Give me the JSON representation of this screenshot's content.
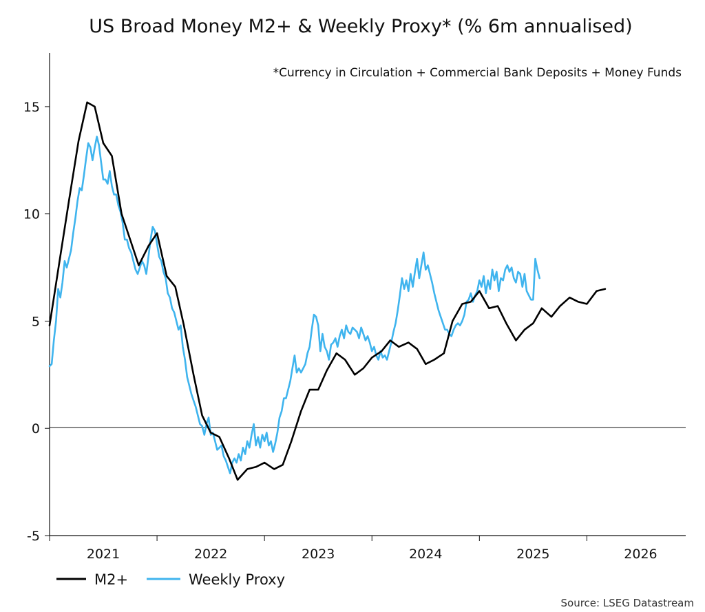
{
  "chart_data": {
    "type": "line",
    "title": "US Broad Money M2+ & Weekly Proxy* (% 6m annualised)",
    "note": "*Currency in Circulation + Commercial Bank Deposits + Money Funds",
    "source": "Source: LSEG Datastream",
    "xlabel": "",
    "ylabel": "",
    "ylim": [
      -5,
      17.5
    ],
    "xlim": [
      2020.5,
      2026.42
    ],
    "yticks": [
      -5,
      0,
      5,
      10,
      15
    ],
    "ytick_labels": [
      "-5",
      "0",
      "5",
      "10",
      "15"
    ],
    "xtick_labels": [
      {
        "label": "2021",
        "x": 2021.0
      },
      {
        "label": "2022",
        "x": 2022.0
      },
      {
        "label": "2023",
        "x": 2023.0
      },
      {
        "label": "2024",
        "x": 2024.0
      },
      {
        "label": "2025",
        "x": 2025.0
      },
      {
        "label": "2026",
        "x": 2026.0
      }
    ],
    "zero_line": true,
    "grid": false,
    "legend_position": "bottom-left",
    "series": [
      {
        "name": "M2+",
        "color": "#000000",
        "points": [
          [
            2020.5,
            4.8
          ],
          [
            2020.59,
            7.7
          ],
          [
            2020.68,
            10.6
          ],
          [
            2020.77,
            13.4
          ],
          [
            2020.85,
            15.2
          ],
          [
            2020.92,
            15.0
          ],
          [
            2021.0,
            13.3
          ],
          [
            2021.08,
            12.7
          ],
          [
            2021.17,
            10.0
          ],
          [
            2021.25,
            8.8
          ],
          [
            2021.33,
            7.6
          ],
          [
            2021.42,
            8.5
          ],
          [
            2021.5,
            9.1
          ],
          [
            2021.59,
            7.1
          ],
          [
            2021.67,
            6.6
          ],
          [
            2021.75,
            4.8
          ],
          [
            2021.84,
            2.5
          ],
          [
            2021.92,
            0.6
          ],
          [
            2022.0,
            -0.2
          ],
          [
            2022.08,
            -0.4
          ],
          [
            2022.17,
            -1.4
          ],
          [
            2022.25,
            -2.4
          ],
          [
            2022.34,
            -1.9
          ],
          [
            2022.42,
            -1.8
          ],
          [
            2022.5,
            -1.6
          ],
          [
            2022.59,
            -1.9
          ],
          [
            2022.67,
            -1.7
          ],
          [
            2022.75,
            -0.6
          ],
          [
            2022.84,
            0.8
          ],
          [
            2022.92,
            1.8
          ],
          [
            2023.0,
            1.8
          ],
          [
            2023.08,
            2.7
          ],
          [
            2023.17,
            3.5
          ],
          [
            2023.25,
            3.2
          ],
          [
            2023.34,
            2.5
          ],
          [
            2023.42,
            2.8
          ],
          [
            2023.5,
            3.3
          ],
          [
            2023.59,
            3.6
          ],
          [
            2023.67,
            4.1
          ],
          [
            2023.75,
            3.8
          ],
          [
            2023.84,
            4.0
          ],
          [
            2023.92,
            3.7
          ],
          [
            2024.0,
            3.0
          ],
          [
            2024.08,
            3.2
          ],
          [
            2024.17,
            3.5
          ],
          [
            2024.25,
            5.0
          ],
          [
            2024.34,
            5.8
          ],
          [
            2024.42,
            5.9
          ],
          [
            2024.5,
            6.4
          ],
          [
            2024.59,
            5.6
          ],
          [
            2024.67,
            5.7
          ],
          [
            2024.75,
            4.9
          ],
          [
            2024.84,
            4.1
          ],
          [
            2024.92,
            4.6
          ],
          [
            2025.0,
            4.9
          ],
          [
            2025.08,
            5.6
          ],
          [
            2025.17,
            5.2
          ],
          [
            2025.25,
            5.7
          ],
          [
            2025.34,
            6.1
          ],
          [
            2025.42,
            5.9
          ],
          [
            2025.5,
            5.8
          ],
          [
            2025.59,
            6.4
          ],
          [
            2025.67,
            6.5
          ]
        ]
      },
      {
        "name": "Weekly Proxy",
        "color": "#3fb4ee",
        "points": [
          [
            2020.5,
            2.9
          ],
          [
            2020.52,
            3.0
          ],
          [
            2020.54,
            4.1
          ],
          [
            2020.56,
            5.0
          ],
          [
            2020.58,
            6.5
          ],
          [
            2020.6,
            6.1
          ],
          [
            2020.62,
            6.8
          ],
          [
            2020.64,
            7.8
          ],
          [
            2020.66,
            7.5
          ],
          [
            2020.68,
            7.9
          ],
          [
            2020.7,
            8.3
          ],
          [
            2020.72,
            9.1
          ],
          [
            2020.74,
            9.8
          ],
          [
            2020.76,
            10.6
          ],
          [
            2020.78,
            11.2
          ],
          [
            2020.8,
            11.1
          ],
          [
            2020.82,
            11.8
          ],
          [
            2020.84,
            12.6
          ],
          [
            2020.86,
            13.3
          ],
          [
            2020.88,
            13.1
          ],
          [
            2020.9,
            12.5
          ],
          [
            2020.92,
            13.1
          ],
          [
            2020.94,
            13.6
          ],
          [
            2020.96,
            13.2
          ],
          [
            2020.98,
            12.4
          ],
          [
            2021.0,
            11.6
          ],
          [
            2021.02,
            11.6
          ],
          [
            2021.04,
            11.4
          ],
          [
            2021.06,
            12.0
          ],
          [
            2021.08,
            11.3
          ],
          [
            2021.1,
            10.9
          ],
          [
            2021.12,
            10.9
          ],
          [
            2021.14,
            10.4
          ],
          [
            2021.16,
            10.1
          ],
          [
            2021.18,
            9.6
          ],
          [
            2021.2,
            8.8
          ],
          [
            2021.22,
            8.8
          ],
          [
            2021.24,
            8.4
          ],
          [
            2021.26,
            8.2
          ],
          [
            2021.28,
            7.8
          ],
          [
            2021.3,
            7.4
          ],
          [
            2021.32,
            7.2
          ],
          [
            2021.34,
            7.5
          ],
          [
            2021.36,
            7.8
          ],
          [
            2021.38,
            7.6
          ],
          [
            2021.4,
            7.2
          ],
          [
            2021.42,
            8.0
          ],
          [
            2021.44,
            8.8
          ],
          [
            2021.46,
            9.4
          ],
          [
            2021.48,
            9.2
          ],
          [
            2021.5,
            8.6
          ],
          [
            2021.52,
            8.0
          ],
          [
            2021.54,
            7.8
          ],
          [
            2021.56,
            7.3
          ],
          [
            2021.58,
            7.0
          ],
          [
            2021.6,
            6.3
          ],
          [
            2021.62,
            6.1
          ],
          [
            2021.64,
            5.6
          ],
          [
            2021.66,
            5.4
          ],
          [
            2021.68,
            5.0
          ],
          [
            2021.7,
            4.6
          ],
          [
            2021.72,
            4.8
          ],
          [
            2021.74,
            3.8
          ],
          [
            2021.76,
            3.2
          ],
          [
            2021.78,
            2.4
          ],
          [
            2021.8,
            2.0
          ],
          [
            2021.82,
            1.6
          ],
          [
            2021.84,
            1.3
          ],
          [
            2021.86,
            1.0
          ],
          [
            2021.88,
            0.6
          ],
          [
            2021.9,
            0.2
          ],
          [
            2021.92,
            0.1
          ],
          [
            2021.94,
            -0.3
          ],
          [
            2021.96,
            0.2
          ],
          [
            2021.98,
            0.5
          ],
          [
            2022.0,
            -0.3
          ],
          [
            2022.02,
            -0.2
          ],
          [
            2022.04,
            -0.6
          ],
          [
            2022.06,
            -1.0
          ],
          [
            2022.08,
            -0.9
          ],
          [
            2022.1,
            -0.8
          ],
          [
            2022.12,
            -1.3
          ],
          [
            2022.14,
            -1.5
          ],
          [
            2022.16,
            -1.8
          ],
          [
            2022.18,
            -2.1
          ],
          [
            2022.2,
            -1.6
          ],
          [
            2022.22,
            -1.4
          ],
          [
            2022.24,
            -1.6
          ],
          [
            2022.26,
            -1.2
          ],
          [
            2022.28,
            -1.5
          ],
          [
            2022.3,
            -0.9
          ],
          [
            2022.32,
            -1.2
          ],
          [
            2022.34,
            -0.6
          ],
          [
            2022.36,
            -0.9
          ],
          [
            2022.38,
            -0.3
          ],
          [
            2022.4,
            0.2
          ],
          [
            2022.42,
            -0.8
          ],
          [
            2022.44,
            -0.4
          ],
          [
            2022.46,
            -0.9
          ],
          [
            2022.48,
            -0.3
          ],
          [
            2022.5,
            -0.6
          ],
          [
            2022.52,
            -0.2
          ],
          [
            2022.54,
            -0.8
          ],
          [
            2022.56,
            -0.6
          ],
          [
            2022.58,
            -1.1
          ],
          [
            2022.6,
            -0.7
          ],
          [
            2022.62,
            -0.2
          ],
          [
            2022.64,
            0.5
          ],
          [
            2022.66,
            0.8
          ],
          [
            2022.68,
            1.4
          ],
          [
            2022.7,
            1.4
          ],
          [
            2022.72,
            1.8
          ],
          [
            2022.74,
            2.2
          ],
          [
            2022.76,
            2.8
          ],
          [
            2022.78,
            3.4
          ],
          [
            2022.8,
            2.6
          ],
          [
            2022.82,
            2.8
          ],
          [
            2022.84,
            2.6
          ],
          [
            2022.86,
            2.8
          ],
          [
            2022.88,
            3.0
          ],
          [
            2022.9,
            3.5
          ],
          [
            2022.92,
            3.8
          ],
          [
            2022.94,
            4.6
          ],
          [
            2022.96,
            5.3
          ],
          [
            2022.98,
            5.2
          ],
          [
            2023.0,
            4.8
          ],
          [
            2023.02,
            3.6
          ],
          [
            2023.04,
            4.4
          ],
          [
            2023.06,
            3.8
          ],
          [
            2023.08,
            3.6
          ],
          [
            2023.1,
            3.2
          ],
          [
            2023.12,
            3.9
          ],
          [
            2023.14,
            4.0
          ],
          [
            2023.16,
            4.2
          ],
          [
            2023.18,
            3.8
          ],
          [
            2023.2,
            4.3
          ],
          [
            2023.22,
            4.6
          ],
          [
            2023.24,
            4.2
          ],
          [
            2023.26,
            4.8
          ],
          [
            2023.28,
            4.5
          ],
          [
            2023.3,
            4.4
          ],
          [
            2023.32,
            4.7
          ],
          [
            2023.34,
            4.6
          ],
          [
            2023.36,
            4.5
          ],
          [
            2023.38,
            4.2
          ],
          [
            2023.4,
            4.7
          ],
          [
            2023.42,
            4.4
          ],
          [
            2023.44,
            4.1
          ],
          [
            2023.46,
            4.3
          ],
          [
            2023.48,
            4.0
          ],
          [
            2023.5,
            3.6
          ],
          [
            2023.52,
            3.8
          ],
          [
            2023.54,
            3.4
          ],
          [
            2023.56,
            3.2
          ],
          [
            2023.58,
            3.6
          ],
          [
            2023.6,
            3.3
          ],
          [
            2023.62,
            3.4
          ],
          [
            2023.64,
            3.2
          ],
          [
            2023.66,
            3.6
          ],
          [
            2023.68,
            4.0
          ],
          [
            2023.7,
            4.5
          ],
          [
            2023.72,
            4.9
          ],
          [
            2023.74,
            5.5
          ],
          [
            2023.76,
            6.2
          ],
          [
            2023.78,
            7.0
          ],
          [
            2023.8,
            6.5
          ],
          [
            2023.82,
            6.9
          ],
          [
            2023.84,
            6.4
          ],
          [
            2023.86,
            7.2
          ],
          [
            2023.88,
            6.6
          ],
          [
            2023.9,
            7.3
          ],
          [
            2023.92,
            7.9
          ],
          [
            2023.94,
            7.0
          ],
          [
            2023.96,
            7.6
          ],
          [
            2023.98,
            8.2
          ],
          [
            2024.0,
            7.4
          ],
          [
            2024.02,
            7.6
          ],
          [
            2024.04,
            7.2
          ],
          [
            2024.06,
            6.8
          ],
          [
            2024.08,
            6.3
          ],
          [
            2024.1,
            5.9
          ],
          [
            2024.12,
            5.5
          ],
          [
            2024.14,
            5.2
          ],
          [
            2024.16,
            4.9
          ],
          [
            2024.18,
            4.6
          ],
          [
            2024.2,
            4.6
          ],
          [
            2024.22,
            4.4
          ],
          [
            2024.24,
            4.3
          ],
          [
            2024.26,
            4.6
          ],
          [
            2024.28,
            4.8
          ],
          [
            2024.3,
            4.9
          ],
          [
            2024.32,
            4.8
          ],
          [
            2024.34,
            5.0
          ],
          [
            2024.36,
            5.3
          ],
          [
            2024.38,
            5.9
          ],
          [
            2024.4,
            6.0
          ],
          [
            2024.42,
            6.3
          ],
          [
            2024.44,
            5.9
          ],
          [
            2024.46,
            6.2
          ],
          [
            2024.48,
            6.4
          ],
          [
            2024.5,
            6.9
          ],
          [
            2024.52,
            6.6
          ],
          [
            2024.54,
            7.1
          ],
          [
            2024.56,
            6.3
          ],
          [
            2024.58,
            6.9
          ],
          [
            2024.6,
            6.5
          ],
          [
            2024.62,
            7.4
          ],
          [
            2024.64,
            6.9
          ],
          [
            2024.66,
            7.3
          ],
          [
            2024.68,
            6.4
          ],
          [
            2024.7,
            7.0
          ],
          [
            2024.72,
            6.9
          ],
          [
            2024.74,
            7.4
          ],
          [
            2024.76,
            7.6
          ],
          [
            2024.78,
            7.3
          ],
          [
            2024.8,
            7.5
          ],
          [
            2024.82,
            7.0
          ],
          [
            2024.84,
            6.8
          ],
          [
            2024.86,
            7.3
          ],
          [
            2024.88,
            7.2
          ],
          [
            2024.9,
            6.6
          ],
          [
            2024.92,
            7.2
          ],
          [
            2024.94,
            6.4
          ],
          [
            2024.96,
            6.2
          ],
          [
            2024.98,
            6.0
          ],
          [
            2025.0,
            6.0
          ],
          [
            2025.02,
            7.9
          ],
          [
            2025.04,
            7.4
          ],
          [
            2025.06,
            7.0
          ]
        ]
      }
    ]
  },
  "legend": {
    "items": [
      {
        "label": "M2+",
        "color": "#000000"
      },
      {
        "label": "Weekly Proxy",
        "color": "#3fb4ee"
      }
    ]
  }
}
